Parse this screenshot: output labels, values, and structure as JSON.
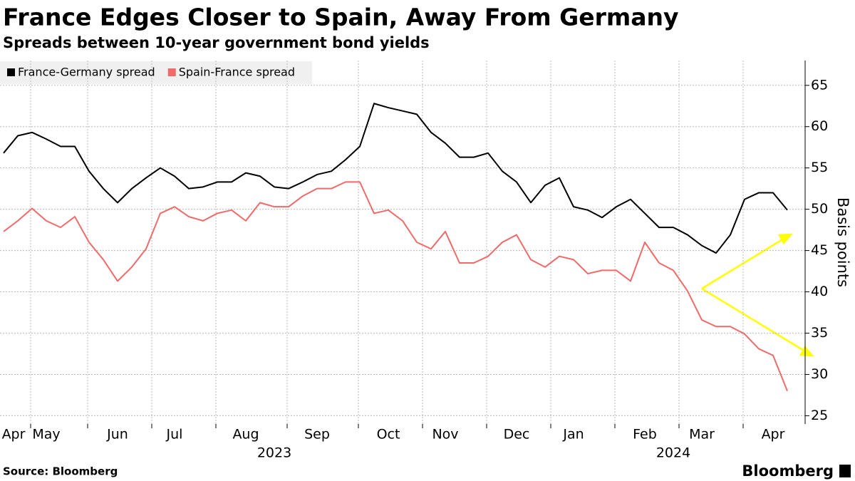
{
  "chart_data": {
    "type": "line",
    "title": "France Edges Closer to Spain, Away From Germany",
    "subtitle": "Spreads between 10-year government bond yields",
    "y_label": "Basis points",
    "source": "Source: Bloomberg",
    "brand": "Bloomberg",
    "categories": [
      "Apr",
      null,
      null,
      "May",
      null,
      null,
      null,
      null,
      "Jun",
      null,
      null,
      null,
      "Jul",
      null,
      null,
      null,
      null,
      "Aug",
      null,
      null,
      null,
      null,
      "Sep",
      null,
      null,
      null,
      null,
      "Oct",
      null,
      null,
      null,
      "Nov",
      null,
      null,
      null,
      null,
      "Dec",
      null,
      null,
      null,
      "Jan",
      null,
      null,
      null,
      null,
      "Feb",
      null,
      null,
      null,
      "Mar",
      null,
      null,
      null,
      null,
      "Apr",
      null
    ],
    "categories2": [
      null,
      null,
      null,
      null,
      null,
      null,
      null,
      null,
      null,
      null,
      null,
      null,
      null,
      null,
      null,
      null,
      null,
      null,
      null,
      "2023",
      null,
      null,
      null,
      null,
      null,
      null,
      null,
      null,
      null,
      null,
      null,
      null,
      null,
      null,
      null,
      null,
      null,
      null,
      null,
      null,
      null,
      null,
      null,
      null,
      null,
      null,
      null,
      "2024",
      null,
      null,
      null,
      null,
      null,
      null,
      null,
      null
    ],
    "series": [
      {
        "name": "France-Germany spread",
        "color": "#000000",
        "values": [
          56.8,
          58.9,
          59.3,
          58.5,
          57.6,
          57.6,
          54.6,
          52.5,
          50.8,
          52.5,
          53.8,
          55,
          54,
          52.5,
          52.7,
          53.3,
          53.3,
          54.4,
          54,
          52.7,
          52.5,
          53.3,
          54.2,
          54.6,
          56,
          57.6,
          62.8,
          62.3,
          61.9,
          61.5,
          59.3,
          58,
          56.3,
          56.3,
          56.8,
          54.6,
          53.3,
          50.8,
          52.9,
          53.8,
          50.3,
          49.9,
          49,
          50.3,
          51.2,
          49.5,
          47.8,
          47.8,
          46.9,
          45.6,
          44.7,
          46.9,
          51.2,
          52,
          52,
          49.9
        ]
      },
      {
        "name": "Spain-France spread",
        "color": "#f06a6a",
        "values": [
          47.3,
          48.6,
          50.1,
          48.6,
          47.8,
          49.1,
          46,
          43.9,
          41.3,
          43,
          45.2,
          49.5,
          50.3,
          49.1,
          48.6,
          49.5,
          49.9,
          48.6,
          50.8,
          50.3,
          50.3,
          51.6,
          52.5,
          52.5,
          53.3,
          53.3,
          49.5,
          49.9,
          48.6,
          46,
          45.2,
          47.3,
          43.5,
          43.5,
          44.3,
          46,
          46.9,
          43.9,
          43,
          44.3,
          43.9,
          42.2,
          42.6,
          42.6,
          41.3,
          46,
          43.5,
          42.6,
          40.1,
          36.6,
          35.8,
          35.8,
          34.9,
          33.1,
          32.3,
          28
        ]
      }
    ],
    "ylim": [
      24,
      68
    ],
    "yticks": [
      25,
      30,
      35,
      40,
      45,
      50,
      55,
      60,
      65
    ],
    "grid": true
  }
}
